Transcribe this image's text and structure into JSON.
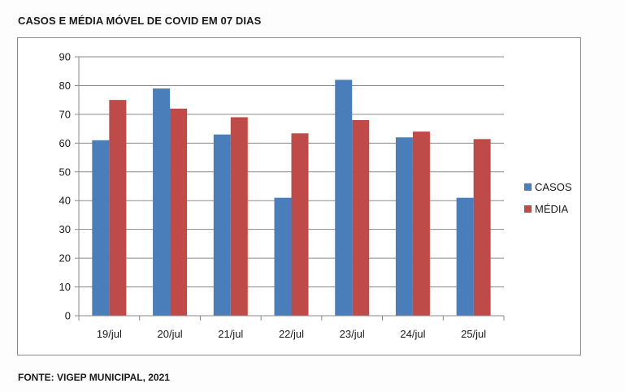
{
  "title": "CASOS E MÉDIA MÓVEL DE COVID EM 07 DIAS",
  "source": "FONTE: VIGEP MUNICIPAL, 2021",
  "chart_data": {
    "type": "bar",
    "title": "CASOS E MÉDIA MÓVEL DE COVID EM 07 DIAS",
    "xlabel": "",
    "ylabel": "",
    "categories": [
      "19/jul",
      "20/jul",
      "21/jul",
      "22/jul",
      "23/jul",
      "24/jul",
      "25/jul"
    ],
    "series": [
      {
        "name": "CASOS",
        "color": "#4a7ebb",
        "values": [
          61,
          79,
          63,
          41,
          82,
          62,
          41
        ]
      },
      {
        "name": "MÉDIA",
        "color": "#be4b48",
        "values": [
          75,
          72,
          69,
          63.4,
          68,
          64,
          61.4
        ]
      }
    ],
    "ylim": [
      0,
      90
    ],
    "yticks": [
      0,
      10,
      20,
      30,
      40,
      50,
      60,
      70,
      80,
      90
    ],
    "grid": true,
    "legend": "right"
  }
}
